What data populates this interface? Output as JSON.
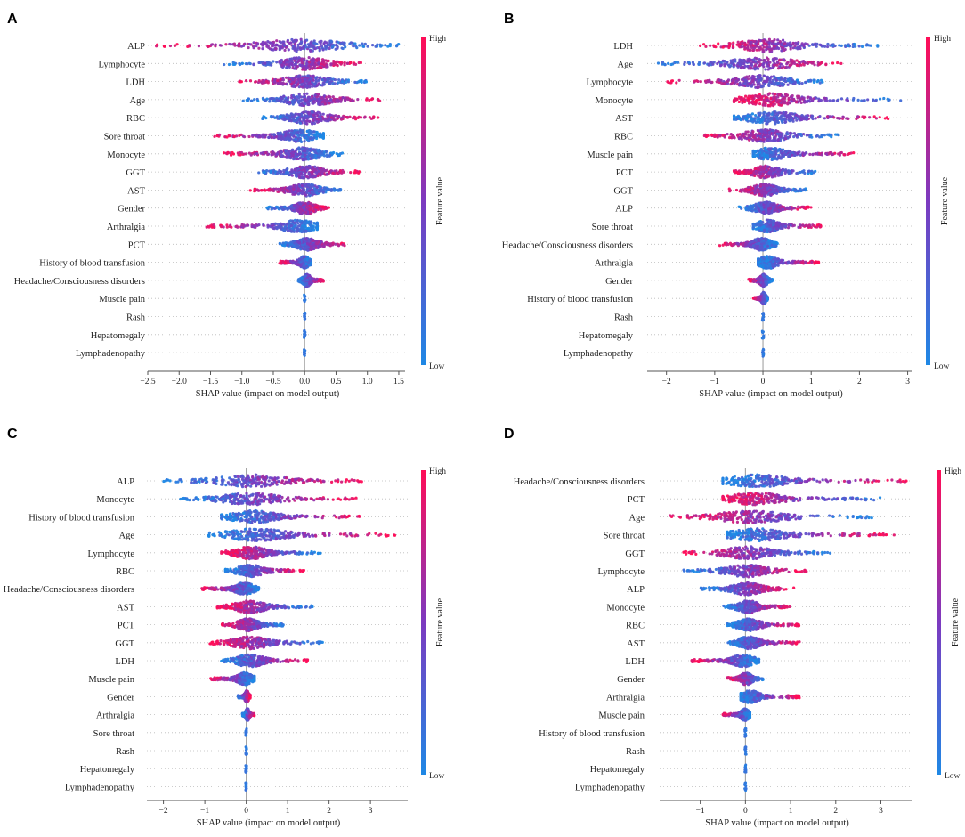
{
  "colors": {
    "low": "#1E88E5",
    "high": "#FF0D57",
    "grid": "#bbbbbb",
    "zero_line": "#999999",
    "axis": "#555555"
  },
  "chart_data": [
    {
      "panel": "A",
      "type": "scatter",
      "subtype": "shap-beeswarm",
      "xlabel": "SHAP value (impact on model output)",
      "xlim": [
        -2.5,
        1.6
      ],
      "xticks": [
        -2.5,
        -2.0,
        -1.5,
        -1.0,
        -0.5,
        0.0,
        0.5,
        1.0,
        1.5
      ],
      "xtick_labels": [
        "−2.5",
        "−2.0",
        "−1.5",
        "−1.0",
        "−0.5",
        "0.0",
        "0.5",
        "1.0",
        "1.5"
      ],
      "colorbar": {
        "title": "Feature value",
        "high": "High",
        "low": "Low"
      },
      "features": [
        {
          "name": "ALP",
          "min": -2.4,
          "max": 1.5,
          "lowSide": "right"
        },
        {
          "name": "Lymphocyte",
          "min": -1.3,
          "max": 0.9,
          "lowSide": "left"
        },
        {
          "name": "LDH",
          "min": -1.1,
          "max": 1.0,
          "lowSide": "right"
        },
        {
          "name": "Age",
          "min": -1.0,
          "max": 1.3,
          "lowSide": "left"
        },
        {
          "name": "RBC",
          "min": -0.7,
          "max": 1.2,
          "lowSide": "left"
        },
        {
          "name": "Sore throat",
          "min": -1.5,
          "max": 0.3,
          "lowSide": "right"
        },
        {
          "name": "Monocyte",
          "min": -1.3,
          "max": 0.6,
          "lowSide": "right"
        },
        {
          "name": "GGT",
          "min": -0.8,
          "max": 0.9,
          "lowSide": "left"
        },
        {
          "name": "AST",
          "min": -0.9,
          "max": 0.6,
          "lowSide": "right"
        },
        {
          "name": "Gender",
          "min": -0.6,
          "max": 0.4,
          "lowSide": "left"
        },
        {
          "name": "Arthralgia",
          "min": -1.6,
          "max": 0.2,
          "lowSide": "right"
        },
        {
          "name": "PCT",
          "min": -0.4,
          "max": 0.7,
          "lowSide": "left"
        },
        {
          "name": "History of blood transfusion",
          "min": -0.4,
          "max": 0.1,
          "lowSide": "right"
        },
        {
          "name": "Headache/Consciousness disorders",
          "min": -0.1,
          "max": 0.3,
          "lowSide": "left"
        },
        {
          "name": "Muscle pain",
          "min": 0.0,
          "max": 0.0,
          "lowSide": "left"
        },
        {
          "name": "Rash",
          "min": 0.0,
          "max": 0.0,
          "lowSide": "left"
        },
        {
          "name": "Hepatomegaly",
          "min": 0.0,
          "max": 0.0,
          "lowSide": "left"
        },
        {
          "name": "Lymphadenopathy",
          "min": 0.0,
          "max": 0.0,
          "lowSide": "left"
        }
      ]
    },
    {
      "panel": "B",
      "type": "scatter",
      "subtype": "shap-beeswarm",
      "xlabel": "SHAP value (impact on model output)",
      "xlim": [
        -2.4,
        3.1
      ],
      "xticks": [
        -2,
        -1,
        0,
        1,
        2,
        3
      ],
      "xtick_labels": [
        "−2",
        "−1",
        "0",
        "1",
        "2",
        "3"
      ],
      "colorbar": {
        "title": "Feature value",
        "high": "High",
        "low": "Low"
      },
      "features": [
        {
          "name": "LDH",
          "min": -1.3,
          "max": 2.4,
          "lowSide": "right"
        },
        {
          "name": "Age",
          "min": -2.2,
          "max": 1.8,
          "lowSide": "left"
        },
        {
          "name": "Lymphocyte",
          "min": -2.0,
          "max": 1.3,
          "lowSide": "right"
        },
        {
          "name": "Monocyte",
          "min": -0.6,
          "max": 2.9,
          "lowSide": "right"
        },
        {
          "name": "AST",
          "min": -0.6,
          "max": 2.6,
          "lowSide": "left"
        },
        {
          "name": "RBC",
          "min": -1.3,
          "max": 1.6,
          "lowSide": "right"
        },
        {
          "name": "Muscle pain",
          "min": -0.2,
          "max": 1.9,
          "lowSide": "left"
        },
        {
          "name": "PCT",
          "min": -0.6,
          "max": 1.1,
          "lowSide": "right"
        },
        {
          "name": "GGT",
          "min": -0.7,
          "max": 0.9,
          "lowSide": "right"
        },
        {
          "name": "ALP",
          "min": -0.5,
          "max": 1.0,
          "lowSide": "left"
        },
        {
          "name": "Sore throat",
          "min": -0.2,
          "max": 1.2,
          "lowSide": "left"
        },
        {
          "name": "Headache/Consciousness disorders",
          "min": -0.9,
          "max": 0.3,
          "lowSide": "right"
        },
        {
          "name": "Arthralgia",
          "min": -0.1,
          "max": 1.2,
          "lowSide": "left"
        },
        {
          "name": "Gender",
          "min": -0.3,
          "max": 0.2,
          "lowSide": "right"
        },
        {
          "name": "History of blood transfusion",
          "min": -0.2,
          "max": 0.1,
          "lowSide": "right"
        },
        {
          "name": "Rash",
          "min": 0.0,
          "max": 0.0,
          "lowSide": "left"
        },
        {
          "name": "Hepatomegaly",
          "min": 0.0,
          "max": 0.0,
          "lowSide": "left"
        },
        {
          "name": "Lymphadenopathy",
          "min": 0.0,
          "max": 0.0,
          "lowSide": "left"
        }
      ]
    },
    {
      "panel": "C",
      "type": "scatter",
      "subtype": "shap-beeswarm",
      "xlabel": "SHAP value (impact on model output)",
      "xlim": [
        -2.4,
        3.9
      ],
      "xticks": [
        -2,
        -1,
        0,
        1,
        2,
        3
      ],
      "xtick_labels": [
        "−2",
        "−1",
        "0",
        "1",
        "2",
        "3"
      ],
      "colorbar": {
        "title": "Feature value",
        "high": "High",
        "low": "Low"
      },
      "features": [
        {
          "name": "ALP",
          "min": -2.0,
          "max": 2.9,
          "lowSide": "left"
        },
        {
          "name": "Monocyte",
          "min": -1.6,
          "max": 2.7,
          "lowSide": "left"
        },
        {
          "name": "History of blood transfusion",
          "min": -0.6,
          "max": 2.8,
          "lowSide": "left"
        },
        {
          "name": "Age",
          "min": -0.9,
          "max": 3.6,
          "lowSide": "left"
        },
        {
          "name": "Lymphocyte",
          "min": -0.6,
          "max": 1.8,
          "lowSide": "right"
        },
        {
          "name": "RBC",
          "min": -0.5,
          "max": 1.4,
          "lowSide": "left"
        },
        {
          "name": "Headache/Consciousness disorders",
          "min": -1.1,
          "max": 0.3,
          "lowSide": "right"
        },
        {
          "name": "AST",
          "min": -0.7,
          "max": 1.6,
          "lowSide": "right"
        },
        {
          "name": "PCT",
          "min": -0.6,
          "max": 0.9,
          "lowSide": "right"
        },
        {
          "name": "GGT",
          "min": -0.9,
          "max": 1.9,
          "lowSide": "right"
        },
        {
          "name": "LDH",
          "min": -0.6,
          "max": 1.5,
          "lowSide": "left"
        },
        {
          "name": "Muscle pain",
          "min": -0.9,
          "max": 0.2,
          "lowSide": "right"
        },
        {
          "name": "Gender",
          "min": -0.2,
          "max": 0.1,
          "lowSide": "left"
        },
        {
          "name": "Arthralgia",
          "min": -0.1,
          "max": 0.2,
          "lowSide": "left"
        },
        {
          "name": "Sore throat",
          "min": 0.0,
          "max": 0.0,
          "lowSide": "left"
        },
        {
          "name": "Rash",
          "min": 0.0,
          "max": 0.0,
          "lowSide": "left"
        },
        {
          "name": "Hepatomegaly",
          "min": 0.0,
          "max": 0.0,
          "lowSide": "left"
        },
        {
          "name": "Lymphadenopathy",
          "min": 0.0,
          "max": 0.0,
          "lowSide": "left"
        }
      ]
    },
    {
      "panel": "D",
      "type": "scatter",
      "subtype": "shap-beeswarm",
      "xlabel": "SHAP value (impact on model output)",
      "xlim": [
        -1.9,
        3.7
      ],
      "xticks": [
        -1,
        0,
        1,
        2,
        3
      ],
      "xtick_labels": [
        "−1",
        "0",
        "1",
        "2",
        "3"
      ],
      "colorbar": {
        "title": "Feature value",
        "high": "High",
        "low": "Low"
      },
      "features": [
        {
          "name": "Headache/Consciousness disorders",
          "min": -0.5,
          "max": 3.6,
          "lowSide": "left"
        },
        {
          "name": "PCT",
          "min": -0.5,
          "max": 3.0,
          "lowSide": "right"
        },
        {
          "name": "Age",
          "min": -1.7,
          "max": 2.8,
          "lowSide": "right"
        },
        {
          "name": "Sore throat",
          "min": -0.4,
          "max": 3.4,
          "lowSide": "left"
        },
        {
          "name": "GGT",
          "min": -1.4,
          "max": 1.9,
          "lowSide": "right"
        },
        {
          "name": "Lymphocyte",
          "min": -1.4,
          "max": 1.4,
          "lowSide": "left"
        },
        {
          "name": "ALP",
          "min": -1.0,
          "max": 1.1,
          "lowSide": "left"
        },
        {
          "name": "Monocyte",
          "min": -0.5,
          "max": 1.0,
          "lowSide": "left"
        },
        {
          "name": "RBC",
          "min": -0.4,
          "max": 1.2,
          "lowSide": "left"
        },
        {
          "name": "AST",
          "min": -0.4,
          "max": 1.2,
          "lowSide": "left"
        },
        {
          "name": "LDH",
          "min": -1.2,
          "max": 0.3,
          "lowSide": "right"
        },
        {
          "name": "Gender",
          "min": -0.4,
          "max": 0.4,
          "lowSide": "right"
        },
        {
          "name": "Arthralgia",
          "min": -0.1,
          "max": 1.2,
          "lowSide": "left"
        },
        {
          "name": "Muscle pain",
          "min": -0.5,
          "max": 0.1,
          "lowSide": "right"
        },
        {
          "name": "History of blood transfusion",
          "min": 0.0,
          "max": 0.0,
          "lowSide": "left"
        },
        {
          "name": "Rash",
          "min": 0.0,
          "max": 0.0,
          "lowSide": "left"
        },
        {
          "name": "Hepatomegaly",
          "min": 0.0,
          "max": 0.0,
          "lowSide": "left"
        },
        {
          "name": "Lymphadenopathy",
          "min": 0.0,
          "max": 0.0,
          "lowSide": "left"
        }
      ]
    }
  ]
}
